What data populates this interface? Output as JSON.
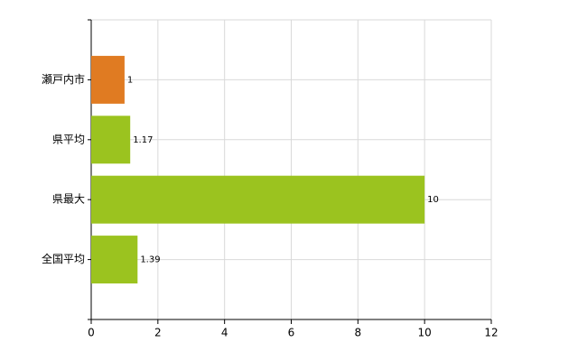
{
  "chart_data": {
    "type": "barh",
    "categories": [
      "瀬戸内市",
      "県平均",
      "県最大",
      "全国平均"
    ],
    "values": [
      1,
      1.17,
      10,
      1.39
    ],
    "colors": [
      "#e07b22",
      "#9bc31f",
      "#9bc31f",
      "#9bc31f"
    ],
    "xlim": [
      0,
      12
    ],
    "xticks": [
      0,
      2,
      4,
      6,
      8,
      10,
      12
    ],
    "grid": true
  }
}
